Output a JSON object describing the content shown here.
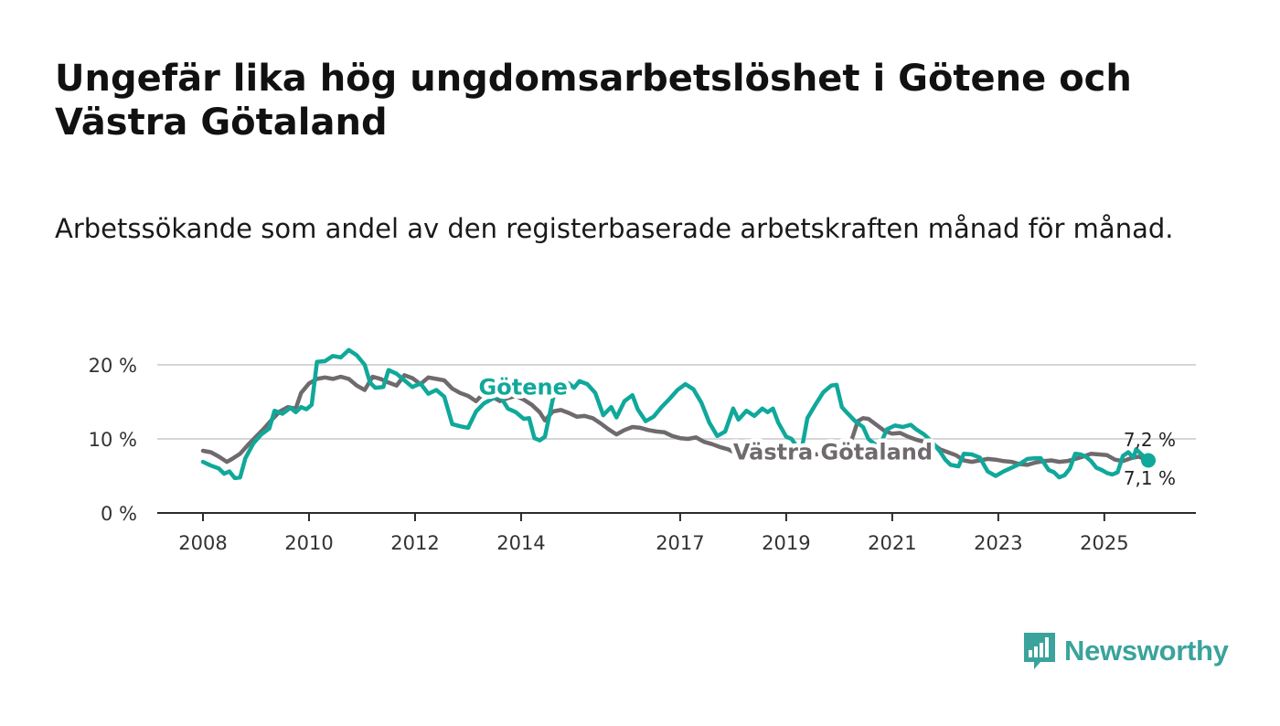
{
  "header": {
    "title": "Ungefär lika hög ungdomsarbetslöshet i Götene och Västra Götaland",
    "subtitle": "Arbetssökande som andel av den registerbaserade arbetskraften månad för månad."
  },
  "brand": {
    "name": "Newsworthy",
    "icon": "newsworthy-logo-icon",
    "color": "#3aa39c"
  },
  "chart_data": {
    "type": "line",
    "title": "Ungefär lika hög ungdomsarbetslöshet i Götene och Västra Götaland",
    "subtitle": "Arbetssökande som andel av den registerbaserade arbetskraften månad för månad.",
    "xlabel": "",
    "ylabel": "",
    "xlim": [
      2008.0,
      2025.83
    ],
    "ylim": [
      0,
      20
    ],
    "grid": true,
    "x_ticks": [
      2008,
      2010,
      2012,
      2014,
      2017,
      2019,
      2021,
      2023,
      2025
    ],
    "x_tick_labels": [
      "2008",
      "2010",
      "2012",
      "2014",
      "2017",
      "2019",
      "2021",
      "2023",
      "2025"
    ],
    "y_ticks": [
      0,
      10,
      20
    ],
    "y_tick_labels": [
      "0 %",
      "10 %",
      "20 %"
    ],
    "series": [
      {
        "name": "Västra Götaland",
        "color": "#6f6a6d",
        "label_x": 2018.0,
        "label_y": 8.2,
        "end_label": "7,2 %",
        "points": [
          [
            2008.0,
            8.4
          ],
          [
            2008.15,
            8.2
          ],
          [
            2008.3,
            7.6
          ],
          [
            2008.45,
            6.9
          ],
          [
            2008.55,
            7.3
          ],
          [
            2008.7,
            8.0
          ],
          [
            2008.85,
            9.2
          ],
          [
            2009.0,
            10.3
          ],
          [
            2009.15,
            11.4
          ],
          [
            2009.3,
            12.6
          ],
          [
            2009.45,
            13.7
          ],
          [
            2009.6,
            14.3
          ],
          [
            2009.75,
            14.1
          ],
          [
            2009.85,
            16.2
          ],
          [
            2010.0,
            17.5
          ],
          [
            2010.15,
            18.1
          ],
          [
            2010.3,
            18.3
          ],
          [
            2010.45,
            18.1
          ],
          [
            2010.6,
            18.4
          ],
          [
            2010.75,
            18.1
          ],
          [
            2010.9,
            17.2
          ],
          [
            2011.05,
            16.6
          ],
          [
            2011.2,
            18.4
          ],
          [
            2011.35,
            18.1
          ],
          [
            2011.5,
            17.6
          ],
          [
            2011.65,
            17.2
          ],
          [
            2011.8,
            18.6
          ],
          [
            2011.95,
            18.2
          ],
          [
            2012.1,
            17.4
          ],
          [
            2012.25,
            18.3
          ],
          [
            2012.4,
            18.1
          ],
          [
            2012.55,
            17.9
          ],
          [
            2012.7,
            16.8
          ],
          [
            2012.85,
            16.2
          ],
          [
            2013.0,
            15.8
          ],
          [
            2013.15,
            15.1
          ],
          [
            2013.3,
            16.2
          ],
          [
            2013.45,
            15.7
          ],
          [
            2013.6,
            15.1
          ],
          [
            2013.75,
            15.5
          ],
          [
            2013.9,
            15.8
          ],
          [
            2014.05,
            15.3
          ],
          [
            2014.2,
            14.6
          ],
          [
            2014.35,
            13.6
          ],
          [
            2014.45,
            12.5
          ],
          [
            2014.6,
            13.7
          ],
          [
            2014.75,
            13.9
          ],
          [
            2014.9,
            13.5
          ],
          [
            2015.05,
            13.0
          ],
          [
            2015.2,
            13.1
          ],
          [
            2015.35,
            12.8
          ],
          [
            2015.5,
            12.1
          ],
          [
            2015.65,
            11.3
          ],
          [
            2015.8,
            10.6
          ],
          [
            2015.95,
            11.2
          ],
          [
            2016.1,
            11.6
          ],
          [
            2016.25,
            11.5
          ],
          [
            2016.4,
            11.2
          ],
          [
            2016.55,
            11.0
          ],
          [
            2016.7,
            10.9
          ],
          [
            2016.85,
            10.4
          ],
          [
            2017.0,
            10.1
          ],
          [
            2017.15,
            10.0
          ],
          [
            2017.3,
            10.2
          ],
          [
            2017.45,
            9.6
          ],
          [
            2017.6,
            9.3
          ],
          [
            2017.75,
            8.9
          ],
          [
            2017.9,
            8.6
          ],
          [
            2018.05,
            8.1
          ],
          [
            2018.2,
            7.9
          ],
          [
            2018.35,
            7.8
          ],
          [
            2018.5,
            7.6
          ],
          [
            2018.65,
            7.5
          ],
          [
            2018.8,
            7.3
          ],
          [
            2018.95,
            7.2
          ],
          [
            2019.1,
            7.2
          ],
          [
            2019.25,
            7.5
          ],
          [
            2019.4,
            7.6
          ],
          [
            2019.55,
            7.9
          ],
          [
            2019.7,
            8.0
          ],
          [
            2019.85,
            8.4
          ],
          [
            2020.0,
            8.6
          ],
          [
            2020.15,
            8.8
          ],
          [
            2020.25,
            10.2
          ],
          [
            2020.35,
            12.4
          ],
          [
            2020.45,
            12.8
          ],
          [
            2020.55,
            12.7
          ],
          [
            2020.7,
            11.9
          ],
          [
            2020.85,
            11.1
          ],
          [
            2021.0,
            10.7
          ],
          [
            2021.15,
            10.8
          ],
          [
            2021.3,
            10.3
          ],
          [
            2021.45,
            9.9
          ],
          [
            2021.6,
            9.6
          ],
          [
            2021.75,
            9.4
          ],
          [
            2021.9,
            8.6
          ],
          [
            2022.05,
            8.2
          ],
          [
            2022.2,
            7.8
          ],
          [
            2022.35,
            7.1
          ],
          [
            2022.5,
            6.9
          ],
          [
            2022.65,
            7.1
          ],
          [
            2022.8,
            7.3
          ],
          [
            2022.95,
            7.2
          ],
          [
            2023.1,
            7.0
          ],
          [
            2023.25,
            6.9
          ],
          [
            2023.4,
            6.6
          ],
          [
            2023.55,
            6.5
          ],
          [
            2023.7,
            6.8
          ],
          [
            2023.85,
            7.0
          ],
          [
            2024.0,
            7.1
          ],
          [
            2024.15,
            6.9
          ],
          [
            2024.3,
            7.0
          ],
          [
            2024.45,
            7.3
          ],
          [
            2024.6,
            7.6
          ],
          [
            2024.75,
            8.0
          ],
          [
            2024.9,
            7.9
          ],
          [
            2025.05,
            7.8
          ],
          [
            2025.2,
            7.2
          ],
          [
            2025.35,
            7.0
          ],
          [
            2025.5,
            7.4
          ],
          [
            2025.65,
            7.6
          ],
          [
            2025.75,
            7.3
          ],
          [
            2025.83,
            7.2
          ]
        ]
      },
      {
        "name": "Götene",
        "color": "#10a89b",
        "label_x": 2013.2,
        "label_y": 17.0,
        "end_label": "7,1 %",
        "points": [
          [
            2008.0,
            6.9
          ],
          [
            2008.15,
            6.4
          ],
          [
            2008.3,
            6.0
          ],
          [
            2008.4,
            5.3
          ],
          [
            2008.5,
            5.6
          ],
          [
            2008.6,
            4.7
          ],
          [
            2008.7,
            4.8
          ],
          [
            2008.8,
            7.4
          ],
          [
            2008.95,
            9.4
          ],
          [
            2009.1,
            10.6
          ],
          [
            2009.25,
            11.4
          ],
          [
            2009.35,
            13.8
          ],
          [
            2009.5,
            13.4
          ],
          [
            2009.65,
            14.2
          ],
          [
            2009.75,
            13.6
          ],
          [
            2009.85,
            14.3
          ],
          [
            2009.95,
            14.0
          ],
          [
            2010.05,
            14.6
          ],
          [
            2010.15,
            20.4
          ],
          [
            2010.3,
            20.5
          ],
          [
            2010.45,
            21.2
          ],
          [
            2010.6,
            21.0
          ],
          [
            2010.75,
            22.0
          ],
          [
            2010.9,
            21.3
          ],
          [
            2011.05,
            20.0
          ],
          [
            2011.15,
            17.6
          ],
          [
            2011.25,
            16.9
          ],
          [
            2011.4,
            17.0
          ],
          [
            2011.5,
            19.3
          ],
          [
            2011.65,
            18.8
          ],
          [
            2011.8,
            17.9
          ],
          [
            2011.95,
            17.0
          ],
          [
            2012.1,
            17.5
          ],
          [
            2012.25,
            16.1
          ],
          [
            2012.4,
            16.6
          ],
          [
            2012.55,
            15.7
          ],
          [
            2012.7,
            12.0
          ],
          [
            2012.85,
            11.7
          ],
          [
            2013.0,
            11.5
          ],
          [
            2013.15,
            13.7
          ],
          [
            2013.3,
            14.8
          ],
          [
            2013.45,
            15.4
          ],
          [
            2013.6,
            15.8
          ],
          [
            2013.75,
            14.1
          ],
          [
            2013.9,
            13.6
          ],
          [
            2014.05,
            12.7
          ],
          [
            2014.15,
            12.8
          ],
          [
            2014.25,
            10.1
          ],
          [
            2014.35,
            9.8
          ],
          [
            2014.45,
            10.3
          ],
          [
            2014.6,
            15.4
          ],
          [
            2014.75,
            17.8
          ],
          [
            2014.9,
            17.5
          ],
          [
            2015.0,
            16.9
          ],
          [
            2015.1,
            17.8
          ],
          [
            2015.25,
            17.4
          ],
          [
            2015.4,
            16.2
          ],
          [
            2015.55,
            13.2
          ],
          [
            2015.7,
            14.3
          ],
          [
            2015.8,
            12.9
          ],
          [
            2015.95,
            15.1
          ],
          [
            2016.1,
            15.9
          ],
          [
            2016.2,
            14.0
          ],
          [
            2016.35,
            12.4
          ],
          [
            2016.5,
            13.0
          ],
          [
            2016.65,
            14.3
          ],
          [
            2016.8,
            15.4
          ],
          [
            2016.95,
            16.6
          ],
          [
            2017.1,
            17.4
          ],
          [
            2017.25,
            16.7
          ],
          [
            2017.4,
            14.9
          ],
          [
            2017.55,
            12.2
          ],
          [
            2017.7,
            10.4
          ],
          [
            2017.85,
            11.0
          ],
          [
            2018.0,
            14.1
          ],
          [
            2018.1,
            12.6
          ],
          [
            2018.25,
            13.8
          ],
          [
            2018.4,
            13.1
          ],
          [
            2018.55,
            14.1
          ],
          [
            2018.65,
            13.6
          ],
          [
            2018.75,
            14.1
          ],
          [
            2018.85,
            12.2
          ],
          [
            2019.0,
            10.3
          ],
          [
            2019.1,
            10.0
          ],
          [
            2019.2,
            9.0
          ],
          [
            2019.3,
            8.9
          ],
          [
            2019.4,
            12.8
          ],
          [
            2019.55,
            14.6
          ],
          [
            2019.7,
            16.3
          ],
          [
            2019.85,
            17.2
          ],
          [
            2019.95,
            17.3
          ],
          [
            2020.05,
            14.3
          ],
          [
            2020.15,
            13.5
          ],
          [
            2020.3,
            12.4
          ],
          [
            2020.45,
            11.6
          ],
          [
            2020.55,
            10.0
          ],
          [
            2020.65,
            9.4
          ],
          [
            2020.75,
            8.9
          ],
          [
            2020.9,
            11.3
          ],
          [
            2021.05,
            11.8
          ],
          [
            2021.2,
            11.6
          ],
          [
            2021.35,
            11.9
          ],
          [
            2021.45,
            11.3
          ],
          [
            2021.6,
            10.6
          ],
          [
            2021.75,
            9.6
          ],
          [
            2021.9,
            8.3
          ],
          [
            2022.0,
            7.2
          ],
          [
            2022.1,
            6.5
          ],
          [
            2022.25,
            6.3
          ],
          [
            2022.35,
            8.0
          ],
          [
            2022.5,
            7.9
          ],
          [
            2022.65,
            7.5
          ],
          [
            2022.8,
            5.6
          ],
          [
            2022.95,
            5.0
          ],
          [
            2023.1,
            5.6
          ],
          [
            2023.25,
            6.1
          ],
          [
            2023.4,
            6.6
          ],
          [
            2023.55,
            7.3
          ],
          [
            2023.7,
            7.4
          ],
          [
            2023.8,
            7.4
          ],
          [
            2023.95,
            5.8
          ],
          [
            2024.05,
            5.5
          ],
          [
            2024.15,
            4.8
          ],
          [
            2024.25,
            5.1
          ],
          [
            2024.35,
            6.0
          ],
          [
            2024.45,
            8.0
          ],
          [
            2024.55,
            7.9
          ],
          [
            2024.65,
            7.6
          ],
          [
            2024.75,
            7.0
          ],
          [
            2024.85,
            6.1
          ],
          [
            2024.95,
            5.8
          ],
          [
            2025.05,
            5.4
          ],
          [
            2025.15,
            5.2
          ],
          [
            2025.25,
            5.5
          ],
          [
            2025.35,
            7.7
          ],
          [
            2025.45,
            8.2
          ],
          [
            2025.55,
            7.5
          ],
          [
            2025.6,
            8.6
          ],
          [
            2025.7,
            7.9
          ],
          [
            2025.83,
            7.1
          ]
        ]
      }
    ]
  }
}
